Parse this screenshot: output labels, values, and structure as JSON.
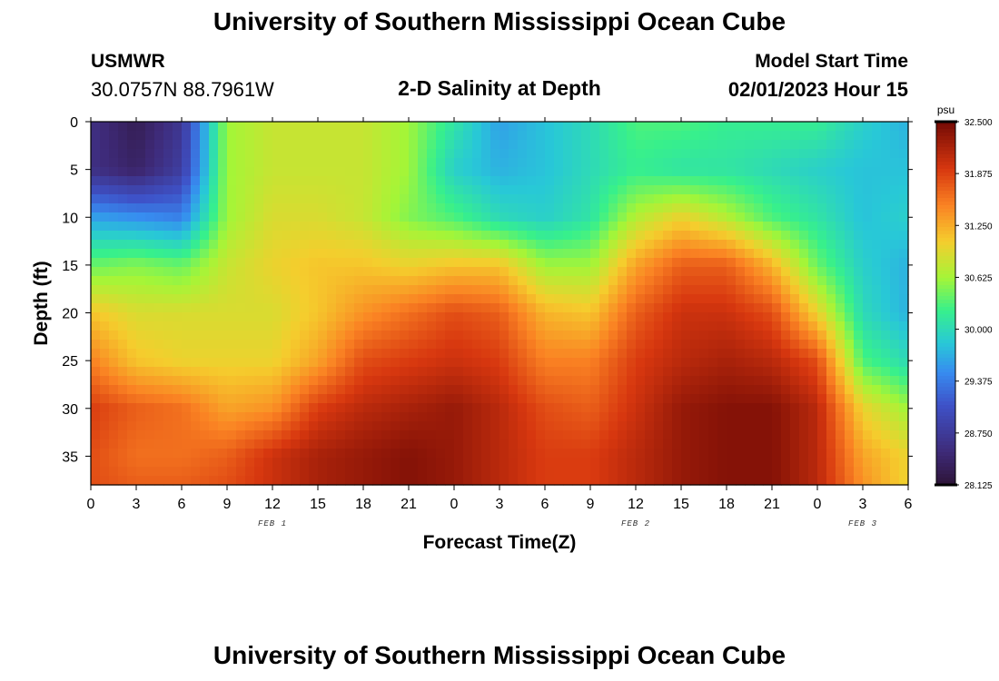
{
  "header": {
    "title": "University of Southern Mississippi Ocean Cube",
    "station": "USMWR",
    "coordinates": "30.0757N  88.7961W",
    "subtitle": "2-D Salinity at Depth",
    "start_label": "Model Start Time",
    "start_value": "02/01/2023 Hour 15",
    "footer_title": "University of Southern Mississippi Ocean Cube"
  },
  "chart_data": {
    "type": "heatmap",
    "title": "2-D Salinity at Depth",
    "xlabel": "Forecast Time(Z)",
    "ylabel": "Depth (ft)",
    "x_hours": [
      0,
      3,
      6,
      9,
      12,
      15,
      18,
      21,
      24,
      27,
      30,
      33,
      36,
      39,
      42,
      45,
      48,
      51,
      54
    ],
    "x_tick_labels": [
      "0",
      "3",
      "6",
      "9",
      "12",
      "15",
      "18",
      "21",
      "0",
      "3",
      "6",
      "9",
      "12",
      "15",
      "18",
      "21",
      "0",
      "3",
      "6"
    ],
    "date_labels": [
      {
        "label": "FEB 1",
        "hour": 12
      },
      {
        "label": "FEB 2",
        "hour": 36
      },
      {
        "label": "FEB 3",
        "hour": 51
      }
    ],
    "y_ticks": [
      0,
      5,
      10,
      15,
      20,
      25,
      30,
      35
    ],
    "ylim": [
      0,
      38
    ],
    "xlim": [
      0,
      54
    ],
    "depths_ft": [
      0,
      5,
      10,
      15,
      20,
      25,
      30,
      35,
      38
    ],
    "salinity_psu": [
      [
        28.6,
        28.3,
        28.7,
        30.6,
        30.8,
        30.8,
        30.8,
        30.6,
        30.1,
        29.6,
        29.8,
        30.0,
        30.3,
        30.3,
        30.2,
        30.2,
        30.2,
        29.9,
        29.7
      ],
      [
        28.6,
        28.4,
        28.8,
        30.6,
        30.8,
        30.8,
        30.8,
        30.6,
        29.9,
        29.7,
        29.8,
        30.0,
        30.2,
        30.1,
        30.1,
        30.0,
        29.9,
        29.8,
        29.8
      ],
      [
        29.6,
        29.5,
        29.4,
        30.6,
        30.9,
        30.9,
        30.8,
        30.5,
        30.3,
        30.0,
        29.9,
        30.1,
        30.7,
        31.0,
        30.7,
        30.3,
        30.1,
        29.8,
        29.9
      ],
      [
        30.4,
        30.5,
        30.4,
        30.8,
        31.0,
        31.1,
        31.1,
        31.0,
        31.1,
        31.1,
        30.6,
        30.6,
        31.3,
        31.7,
        31.7,
        31.2,
        30.4,
        29.9,
        29.7
      ],
      [
        31.1,
        30.9,
        30.9,
        30.9,
        30.9,
        31.1,
        31.4,
        31.6,
        31.8,
        31.7,
        31.2,
        31.1,
        31.7,
        32.0,
        32.0,
        31.8,
        31.0,
        30.0,
        29.7
      ],
      [
        31.5,
        31.1,
        31.0,
        31.0,
        31.0,
        31.3,
        31.8,
        31.9,
        32.0,
        31.9,
        31.5,
        31.5,
        31.9,
        32.1,
        32.2,
        32.1,
        31.8,
        30.3,
        30.0
      ],
      [
        31.9,
        31.7,
        31.6,
        31.3,
        31.4,
        31.9,
        32.1,
        32.2,
        32.3,
        32.1,
        31.8,
        31.7,
        32.0,
        32.3,
        32.4,
        32.4,
        32.1,
        31.0,
        30.6
      ],
      [
        31.8,
        31.6,
        31.6,
        31.7,
        32.0,
        32.2,
        32.3,
        32.4,
        32.3,
        32.1,
        31.9,
        31.9,
        32.1,
        32.3,
        32.4,
        32.4,
        32.1,
        31.3,
        31.0
      ],
      [
        31.8,
        31.7,
        31.7,
        31.8,
        32.0,
        32.2,
        32.3,
        32.4,
        32.3,
        32.1,
        31.9,
        31.9,
        32.1,
        32.3,
        32.4,
        32.4,
        32.1,
        31.4,
        31.0
      ]
    ],
    "colorbar": {
      "unit": "psu",
      "min": 28.125,
      "max": 32.5,
      "tick_labels": [
        "32.500",
        "31.875",
        "31.250",
        "30.625",
        "30.000",
        "29.375",
        "28.750",
        "28.125"
      ]
    }
  }
}
